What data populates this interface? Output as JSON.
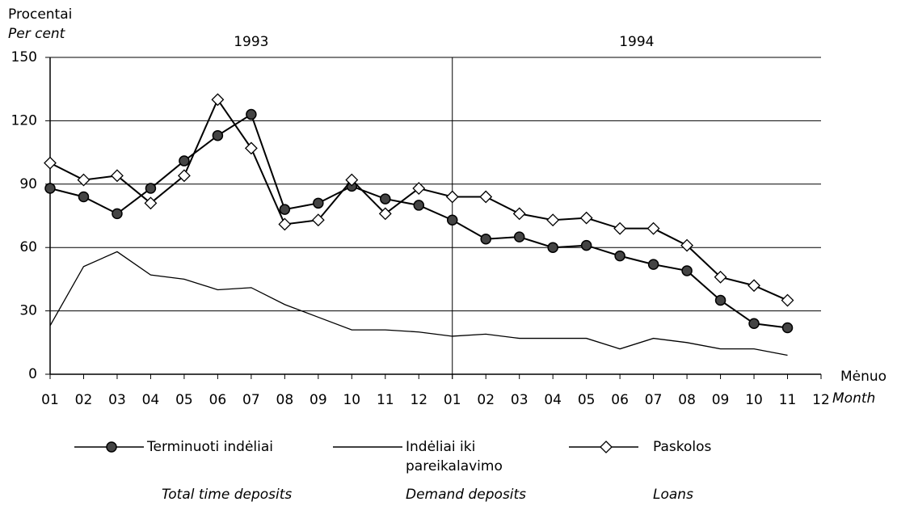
{
  "chart_data": {
    "type": "line",
    "y_label": "Procentai",
    "y_label_en": "Per cent",
    "x_label": "Mėnuo",
    "x_label_en": "Month",
    "years": [
      "1993",
      "1994"
    ],
    "categories": [
      "01",
      "02",
      "03",
      "04",
      "05",
      "06",
      "07",
      "08",
      "09",
      "10",
      "11",
      "12",
      "01",
      "02",
      "03",
      "04",
      "05",
      "06",
      "07",
      "08",
      "09",
      "10",
      "11",
      "12"
    ],
    "series": [
      {
        "name": "Terminuoti indėliai",
        "name_en": "Total time deposits",
        "color": "#000000",
        "marker": "circle",
        "values": [
          88,
          84,
          76,
          88,
          101,
          113,
          123,
          78,
          81,
          89,
          83,
          80,
          73,
          64,
          65,
          60,
          61,
          56,
          52,
          49,
          35,
          24,
          22,
          null
        ]
      },
      {
        "name": "Indėliai iki pareikalavimo",
        "name_en": "Demand deposits",
        "color": "#000000",
        "marker": "none",
        "values": [
          23,
          51,
          58,
          47,
          45,
          40,
          41,
          33,
          27,
          21,
          21,
          20,
          18,
          19,
          17,
          17,
          17,
          12,
          17,
          15,
          12,
          12,
          9,
          null
        ]
      },
      {
        "name": "Paskolos",
        "name_en": "Loans",
        "color": "#000000",
        "marker": "diamond",
        "values": [
          100,
          92,
          94,
          81,
          94,
          130,
          107,
          71,
          73,
          92,
          76,
          88,
          84,
          84,
          76,
          73,
          74,
          69,
          69,
          61,
          46,
          42,
          35,
          null
        ]
      }
    ],
    "ylim": [
      0,
      150
    ],
    "yticks": [
      0,
      30,
      60,
      90,
      120,
      150
    ],
    "grid": true
  }
}
